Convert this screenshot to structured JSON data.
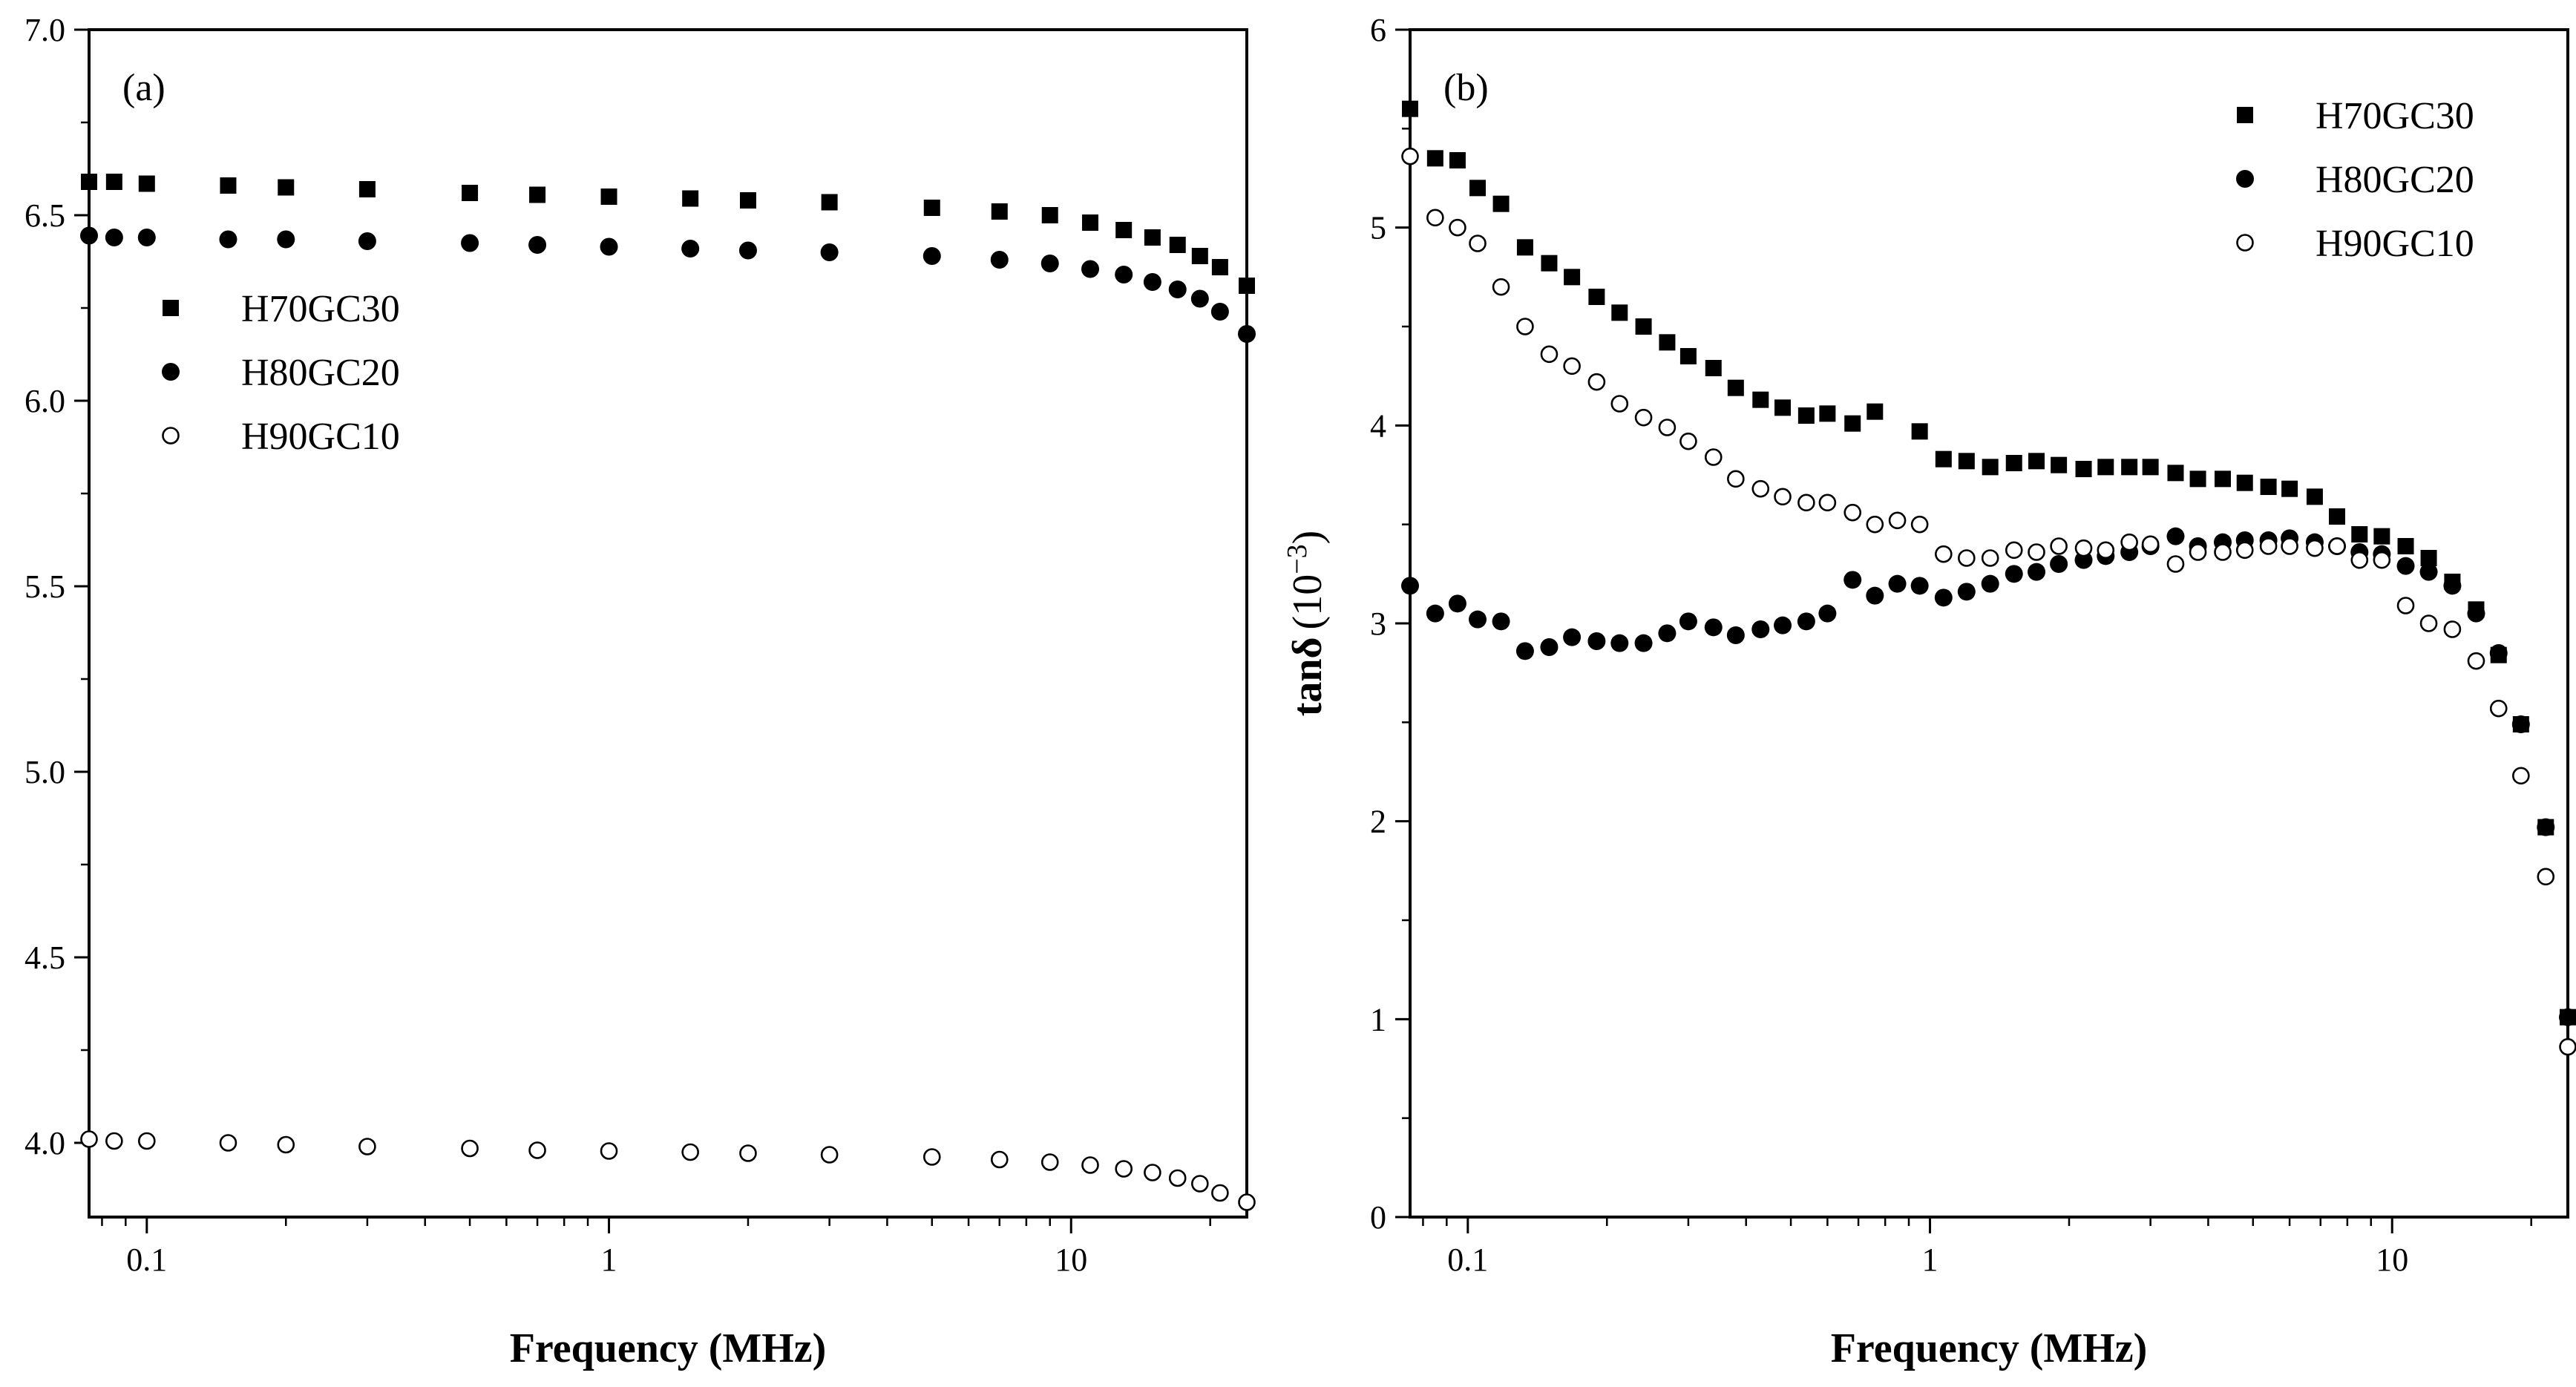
{
  "chart_data": [
    {
      "type": "scatter",
      "panel_label": "(a)",
      "xlabel": "Frequency (MHz)",
      "ylabel": "",
      "xscale": "log",
      "xlim": [
        0.075,
        24
      ],
      "ylim": [
        3.8,
        7.0
      ],
      "x_ticks": [
        0.1,
        1,
        10
      ],
      "x_tick_labels": [
        "0.1",
        "1",
        "10"
      ],
      "y_ticks": [
        4.0,
        4.5,
        5.0,
        5.5,
        6.0,
        6.5,
        7.0
      ],
      "y_tick_labels": [
        "4.0",
        "4.5",
        "5.0",
        "5.5",
        "6.0",
        "6.5",
        "7.0"
      ],
      "legend_position": "upper-left",
      "series": [
        {
          "name": "H70GC30",
          "marker": "filled-square",
          "points": [
            [
              0.075,
              6.59
            ],
            [
              0.085,
              6.59
            ],
            [
              0.1,
              6.585
            ],
            [
              0.15,
              6.58
            ],
            [
              0.2,
              6.575
            ],
            [
              0.3,
              6.57
            ],
            [
              0.5,
              6.56
            ],
            [
              0.7,
              6.555
            ],
            [
              1,
              6.55
            ],
            [
              1.5,
              6.545
            ],
            [
              2,
              6.54
            ],
            [
              3,
              6.535
            ],
            [
              5,
              6.52
            ],
            [
              7,
              6.51
            ],
            [
              9,
              6.5
            ],
            [
              11,
              6.48
            ],
            [
              13,
              6.46
            ],
            [
              15,
              6.44
            ],
            [
              17,
              6.42
            ],
            [
              19,
              6.39
            ],
            [
              21,
              6.36
            ],
            [
              24,
              6.31
            ]
          ]
        },
        {
          "name": "H80GC20",
          "marker": "filled-circle",
          "points": [
            [
              0.075,
              6.445
            ],
            [
              0.085,
              6.44
            ],
            [
              0.1,
              6.44
            ],
            [
              0.15,
              6.435
            ],
            [
              0.2,
              6.435
            ],
            [
              0.3,
              6.43
            ],
            [
              0.5,
              6.425
            ],
            [
              0.7,
              6.42
            ],
            [
              1,
              6.415
            ],
            [
              1.5,
              6.41
            ],
            [
              2,
              6.405
            ],
            [
              3,
              6.4
            ],
            [
              5,
              6.39
            ],
            [
              7,
              6.38
            ],
            [
              9,
              6.37
            ],
            [
              11,
              6.355
            ],
            [
              13,
              6.34
            ],
            [
              15,
              6.32
            ],
            [
              17,
              6.3
            ],
            [
              19,
              6.275
            ],
            [
              21,
              6.24
            ],
            [
              24,
              6.18
            ]
          ]
        },
        {
          "name": "H90GC10",
          "marker": "open-circle",
          "points": [
            [
              0.075,
              4.01
            ],
            [
              0.085,
              4.005
            ],
            [
              0.1,
              4.005
            ],
            [
              0.15,
              4.0
            ],
            [
              0.2,
              3.995
            ],
            [
              0.3,
              3.99
            ],
            [
              0.5,
              3.985
            ],
            [
              0.7,
              3.98
            ],
            [
              1,
              3.978
            ],
            [
              1.5,
              3.975
            ],
            [
              2,
              3.972
            ],
            [
              3,
              3.968
            ],
            [
              5,
              3.962
            ],
            [
              7,
              3.955
            ],
            [
              9,
              3.948
            ],
            [
              11,
              3.94
            ],
            [
              13,
              3.93
            ],
            [
              15,
              3.92
            ],
            [
              17,
              3.905
            ],
            [
              19,
              3.89
            ],
            [
              21,
              3.865
            ],
            [
              24,
              3.84
            ]
          ]
        }
      ]
    },
    {
      "type": "scatter",
      "panel_label": "(b)",
      "xlabel": "Frequency (MHz)",
      "ylabel_main": "tanδ",
      "ylabel_unit": "(10",
      "ylabel_exp": "−3",
      "ylabel_close": ")",
      "xscale": "log",
      "xlim": [
        0.075,
        24
      ],
      "ylim": [
        0,
        6
      ],
      "x_ticks": [
        0.1,
        1,
        10
      ],
      "x_tick_labels": [
        "0.1",
        "1",
        "10"
      ],
      "y_ticks": [
        0,
        1,
        2,
        3,
        4,
        5,
        6
      ],
      "y_tick_labels": [
        "0",
        "1",
        "2",
        "3",
        "4",
        "5",
        "6"
      ],
      "legend_position": "upper-right",
      "series": [
        {
          "name": "H70GC30",
          "marker": "filled-square",
          "points": [
            [
              0.075,
              5.6
            ],
            [
              0.085,
              5.35
            ],
            [
              0.095,
              5.34
            ],
            [
              0.105,
              5.2
            ],
            [
              0.118,
              5.12
            ],
            [
              0.133,
              4.9
            ],
            [
              0.15,
              4.82
            ],
            [
              0.168,
              4.75
            ],
            [
              0.19,
              4.65
            ],
            [
              0.213,
              4.57
            ],
            [
              0.24,
              4.5
            ],
            [
              0.27,
              4.42
            ],
            [
              0.3,
              4.35
            ],
            [
              0.34,
              4.29
            ],
            [
              0.38,
              4.19
            ],
            [
              0.43,
              4.13
            ],
            [
              0.48,
              4.09
            ],
            [
              0.54,
              4.05
            ],
            [
              0.6,
              4.06
            ],
            [
              0.68,
              4.01
            ],
            [
              0.76,
              4.07
            ],
            [
              0.95,
              3.97
            ],
            [
              1.07,
              3.83
            ],
            [
              1.2,
              3.82
            ],
            [
              1.35,
              3.79
            ],
            [
              1.52,
              3.81
            ],
            [
              1.7,
              3.82
            ],
            [
              1.9,
              3.8
            ],
            [
              2.15,
              3.78
            ],
            [
              2.4,
              3.79
            ],
            [
              2.7,
              3.79
            ],
            [
              3.0,
              3.79
            ],
            [
              3.4,
              3.76
            ],
            [
              3.8,
              3.73
            ],
            [
              4.3,
              3.73
            ],
            [
              4.8,
              3.71
            ],
            [
              5.4,
              3.69
            ],
            [
              6.0,
              3.68
            ],
            [
              6.8,
              3.64
            ],
            [
              7.6,
              3.54
            ],
            [
              8.5,
              3.45
            ],
            [
              9.5,
              3.44
            ],
            [
              10.7,
              3.39
            ],
            [
              12.0,
              3.33
            ],
            [
              13.5,
              3.21
            ],
            [
              15.2,
              3.07
            ],
            [
              17.0,
              2.84
            ],
            [
              19.0,
              2.49
            ],
            [
              21.5,
              1.97
            ],
            [
              24.0,
              1.01
            ]
          ]
        },
        {
          "name": "H80GC20",
          "marker": "filled-circle",
          "points": [
            [
              0.075,
              3.19
            ],
            [
              0.085,
              3.05
            ],
            [
              0.095,
              3.1
            ],
            [
              0.105,
              3.02
            ],
            [
              0.118,
              3.01
            ],
            [
              0.133,
              2.86
            ],
            [
              0.15,
              2.88
            ],
            [
              0.168,
              2.93
            ],
            [
              0.19,
              2.91
            ],
            [
              0.213,
              2.9
            ],
            [
              0.24,
              2.9
            ],
            [
              0.27,
              2.95
            ],
            [
              0.3,
              3.01
            ],
            [
              0.34,
              2.98
            ],
            [
              0.38,
              2.94
            ],
            [
              0.43,
              2.97
            ],
            [
              0.48,
              2.99
            ],
            [
              0.54,
              3.01
            ],
            [
              0.6,
              3.05
            ],
            [
              0.68,
              3.22
            ],
            [
              0.76,
              3.14
            ],
            [
              0.85,
              3.2
            ],
            [
              0.95,
              3.19
            ],
            [
              1.07,
              3.13
            ],
            [
              1.2,
              3.16
            ],
            [
              1.35,
              3.2
            ],
            [
              1.52,
              3.25
            ],
            [
              1.7,
              3.26
            ],
            [
              1.9,
              3.3
            ],
            [
              2.15,
              3.32
            ],
            [
              2.4,
              3.34
            ],
            [
              2.7,
              3.36
            ],
            [
              3.0,
              3.39
            ],
            [
              3.4,
              3.44
            ],
            [
              3.8,
              3.39
            ],
            [
              4.3,
              3.41
            ],
            [
              4.8,
              3.42
            ],
            [
              5.4,
              3.42
            ],
            [
              6.0,
              3.43
            ],
            [
              6.8,
              3.41
            ],
            [
              7.6,
              3.39
            ],
            [
              8.5,
              3.36
            ],
            [
              9.5,
              3.35
            ],
            [
              10.7,
              3.29
            ],
            [
              12.0,
              3.26
            ],
            [
              13.5,
              3.19
            ],
            [
              15.2,
              3.05
            ],
            [
              17.0,
              2.85
            ],
            [
              19.0,
              2.49
            ],
            [
              21.5,
              1.97
            ],
            [
              24.0,
              1.01
            ]
          ]
        },
        {
          "name": "H90GC10",
          "marker": "open-circle",
          "points": [
            [
              0.075,
              5.36
            ],
            [
              0.085,
              5.05
            ],
            [
              0.095,
              5.0
            ],
            [
              0.105,
              4.92
            ],
            [
              0.118,
              4.7
            ],
            [
              0.133,
              4.5
            ],
            [
              0.15,
              4.36
            ],
            [
              0.168,
              4.3
            ],
            [
              0.19,
              4.22
            ],
            [
              0.213,
              4.11
            ],
            [
              0.24,
              4.04
            ],
            [
              0.27,
              3.99
            ],
            [
              0.3,
              3.92
            ],
            [
              0.34,
              3.84
            ],
            [
              0.38,
              3.73
            ],
            [
              0.43,
              3.68
            ],
            [
              0.48,
              3.64
            ],
            [
              0.54,
              3.61
            ],
            [
              0.6,
              3.61
            ],
            [
              0.68,
              3.56
            ],
            [
              0.76,
              3.5
            ],
            [
              0.85,
              3.52
            ],
            [
              0.95,
              3.5
            ],
            [
              1.07,
              3.35
            ],
            [
              1.2,
              3.33
            ],
            [
              1.35,
              3.33
            ],
            [
              1.52,
              3.37
            ],
            [
              1.7,
              3.36
            ],
            [
              1.9,
              3.39
            ],
            [
              2.15,
              3.38
            ],
            [
              2.4,
              3.37
            ],
            [
              2.7,
              3.41
            ],
            [
              3.0,
              3.4
            ],
            [
              3.4,
              3.3
            ],
            [
              3.8,
              3.36
            ],
            [
              4.3,
              3.36
            ],
            [
              4.8,
              3.37
            ],
            [
              5.4,
              3.39
            ],
            [
              6.0,
              3.39
            ],
            [
              6.8,
              3.38
            ],
            [
              7.6,
              3.39
            ],
            [
              8.5,
              3.32
            ],
            [
              9.5,
              3.32
            ],
            [
              10.7,
              3.09
            ],
            [
              12.0,
              3.0
            ],
            [
              13.5,
              2.97
            ],
            [
              15.2,
              2.81
            ],
            [
              17.0,
              2.57
            ],
            [
              19.0,
              2.23
            ],
            [
              21.5,
              1.72
            ],
            [
              24.0,
              0.86
            ]
          ]
        }
      ]
    }
  ]
}
